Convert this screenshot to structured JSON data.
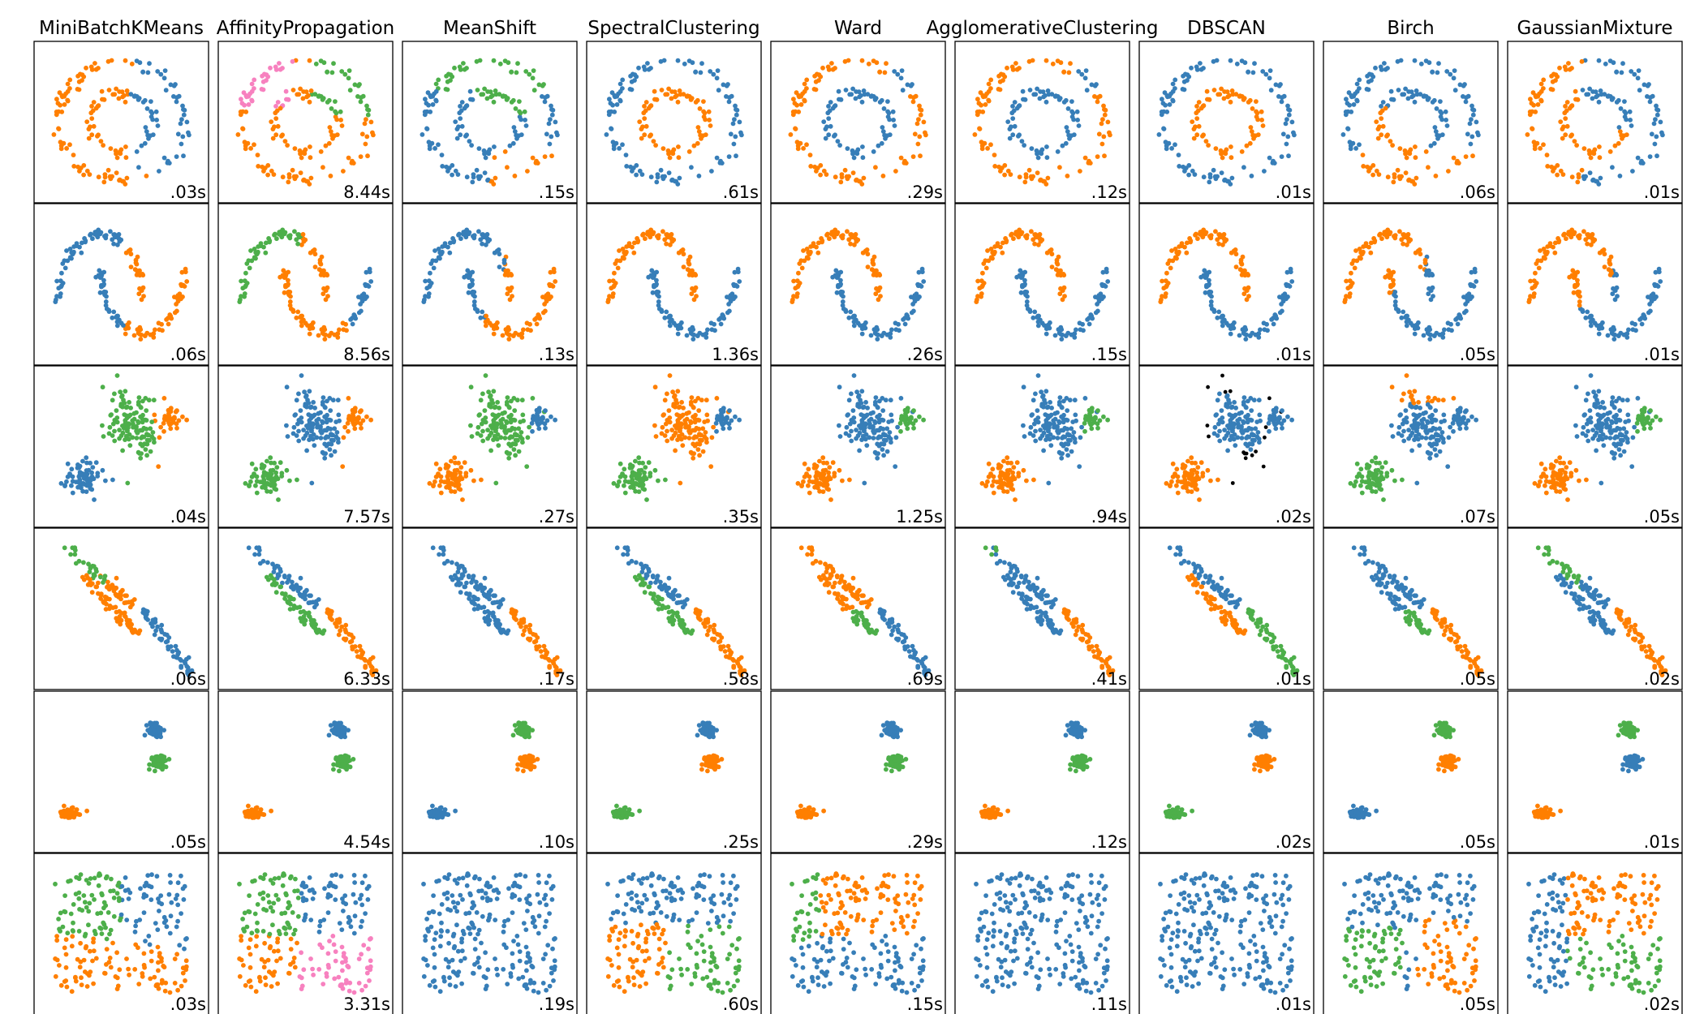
{
  "chart_data": {
    "type": "scatter",
    "title": "",
    "grid": false,
    "axes_visible": false,
    "colors": {
      "blue": "#377eb8",
      "orange": "#ff7f00",
      "green": "#4daf4a",
      "pink": "#f781bf",
      "noise": "#000000"
    },
    "algorithms": [
      "MiniBatchKMeans",
      "AffinityPropagation",
      "MeanShift",
      "SpectralClustering",
      "Ward",
      "AgglomerativeClustering",
      "DBSCAN",
      "Birch",
      "GaussianMixture"
    ],
    "datasets": [
      "noisy_circles",
      "noisy_moons",
      "varied",
      "aniso",
      "blobs",
      "no_structure"
    ],
    "timings": [
      [
        ".03s",
        "8.44s",
        ".15s",
        ".61s",
        ".29s",
        ".12s",
        ".01s",
        ".06s",
        ".01s"
      ],
      [
        ".06s",
        "8.56s",
        ".13s",
        "1.36s",
        ".26s",
        ".15s",
        ".01s",
        ".05s",
        ".01s"
      ],
      [
        ".04s",
        "7.57s",
        ".27s",
        ".35s",
        "1.25s",
        ".94s",
        ".02s",
        ".07s",
        ".05s"
      ],
      [
        ".06s",
        "6.33s",
        ".17s",
        ".58s",
        ".69s",
        ".41s",
        ".01s",
        ".05s",
        ".02s"
      ],
      [
        ".05s",
        "4.54s",
        ".10s",
        ".25s",
        ".29s",
        ".12s",
        ".02s",
        ".05s",
        ".01s"
      ],
      [
        ".03s",
        "3.31s",
        ".19s",
        ".60s",
        ".15s",
        ".11s",
        ".01s",
        ".05s",
        ".02s"
      ]
    ],
    "dataset_shapes": {
      "noisy_circles": {
        "xlim": [
          -1.2,
          1.2
        ],
        "ylim": [
          -1.2,
          1.2
        ],
        "clusters": [
          {
            "kind": "ring",
            "center": [
              0,
              0
            ],
            "radius": 1.0,
            "noise": 0.06,
            "points": 110
          },
          {
            "kind": "ring",
            "center": [
              0,
              0
            ],
            "radius": 0.5,
            "noise": 0.05,
            "points": 70
          }
        ]
      },
      "noisy_moons": {
        "xlim": [
          -1.3,
          2.3
        ],
        "ylim": [
          -0.8,
          1.3
        ],
        "clusters": [
          {
            "kind": "arc",
            "center": [
              0,
              0
            ],
            "radius": 1.0,
            "start_deg": 0,
            "end_deg": 180,
            "noise": 0.05,
            "points": 90
          },
          {
            "kind": "arc",
            "center": [
              1,
              0.5
            ],
            "radius": 1.0,
            "start_deg": 180,
            "end_deg": 360,
            "noise": 0.05,
            "points": 90
          }
        ]
      },
      "varied": {
        "xlim": [
          -2.6,
          3.4
        ],
        "ylim": [
          -2.4,
          2.6
        ],
        "clusters": [
          {
            "kind": "blob",
            "center": [
              0.9,
              1.0
            ],
            "spread": [
              0.55,
              0.6
            ],
            "points": 130
          },
          {
            "kind": "blob",
            "center": [
              2.4,
              1.1
            ],
            "spread": [
              0.2,
              0.22
            ],
            "points": 30
          },
          {
            "kind": "blob",
            "center": [
              -1.1,
              -1.1
            ],
            "spread": [
              0.33,
              0.3
            ],
            "points": 70
          }
        ]
      },
      "aniso": {
        "xlim": [
          -1.4,
          3.4
        ],
        "ylim": [
          -2.6,
          2.6
        ],
        "clusters": [
          {
            "kind": "band",
            "start": [
              -0.7,
              2.3
            ],
            "end": [
              1.3,
              0.2
            ],
            "noise": 0.1,
            "points": 60
          },
          {
            "kind": "band",
            "start": [
              -0.2,
              1.1
            ],
            "end": [
              1.5,
              -0.9
            ],
            "noise": 0.1,
            "points": 60
          },
          {
            "kind": "band",
            "start": [
              1.7,
              0.0
            ],
            "end": [
              3.2,
              -2.4
            ],
            "noise": 0.1,
            "points": 60
          }
        ]
      },
      "blobs": {
        "xlim": [
          -2.5,
          2.5
        ],
        "ylim": [
          -2.5,
          2.5
        ],
        "clusters": [
          {
            "kind": "blob",
            "center": [
              1.1,
              1.5
            ],
            "spread": [
              0.13,
              0.12
            ],
            "points": 60
          },
          {
            "kind": "blob",
            "center": [
              1.25,
              0.35
            ],
            "spread": [
              0.13,
              0.12
            ],
            "points": 60
          },
          {
            "kind": "blob",
            "center": [
              -1.7,
              -1.5
            ],
            "spread": [
              0.14,
              0.11
            ],
            "points": 60
          }
        ]
      },
      "no_structure": {
        "xlim": [
          -0.05,
          1.05
        ],
        "ylim": [
          -0.05,
          1.05
        ],
        "clusters": [
          {
            "kind": "uniform",
            "x": [
              0.02,
              0.98
            ],
            "y": [
              0.02,
              0.98
            ],
            "points": 240
          }
        ]
      }
    },
    "panel_patterns": {
      "noisy_circles": [
        "circle_halves",
        "circle_quads",
        "circle_meanshift",
        "two_rings",
        "two_rings_swap",
        "two_rings_swap",
        "two_rings",
        "circle_birch",
        "circle_gauss"
      ],
      "noisy_moons": [
        "moons_kmeans",
        "moons_affinity",
        "moons_meanshift",
        "two_moons_swap",
        "two_moons_swap",
        "two_moons_swap",
        "two_moons_swap",
        "moons_birch",
        "moons_gauss"
      ],
      "varied": [
        "varied_kmeans",
        "varied_affinity",
        "varied_meanshift",
        "varied_spectral",
        "varied_ward",
        "varied_ward",
        "varied_dbscan",
        "varied_birch",
        "varied_gauss"
      ],
      "aniso": [
        "aniso_kmeans",
        "aniso_affinity",
        "aniso_meanshift",
        "aniso_spectral",
        "aniso_ward",
        "aniso_agglo",
        "aniso_dbscan",
        "aniso_birch",
        "aniso_gauss"
      ],
      "blobs": [
        "blobs_bgo",
        "blobs_bgo",
        "blobs_gob",
        "blobs_bog",
        "blobs_bgo",
        "blobs_bgo",
        "blobs_bog",
        "blobs_gob",
        "blobs_gbo"
      ],
      "no_structure": [
        "uni_kmeans",
        "uni_affinity",
        "uni_single",
        "uni_spectral",
        "uni_ward",
        "uni_single",
        "uni_single",
        "uni_birch",
        "uni_gauss"
      ]
    }
  }
}
